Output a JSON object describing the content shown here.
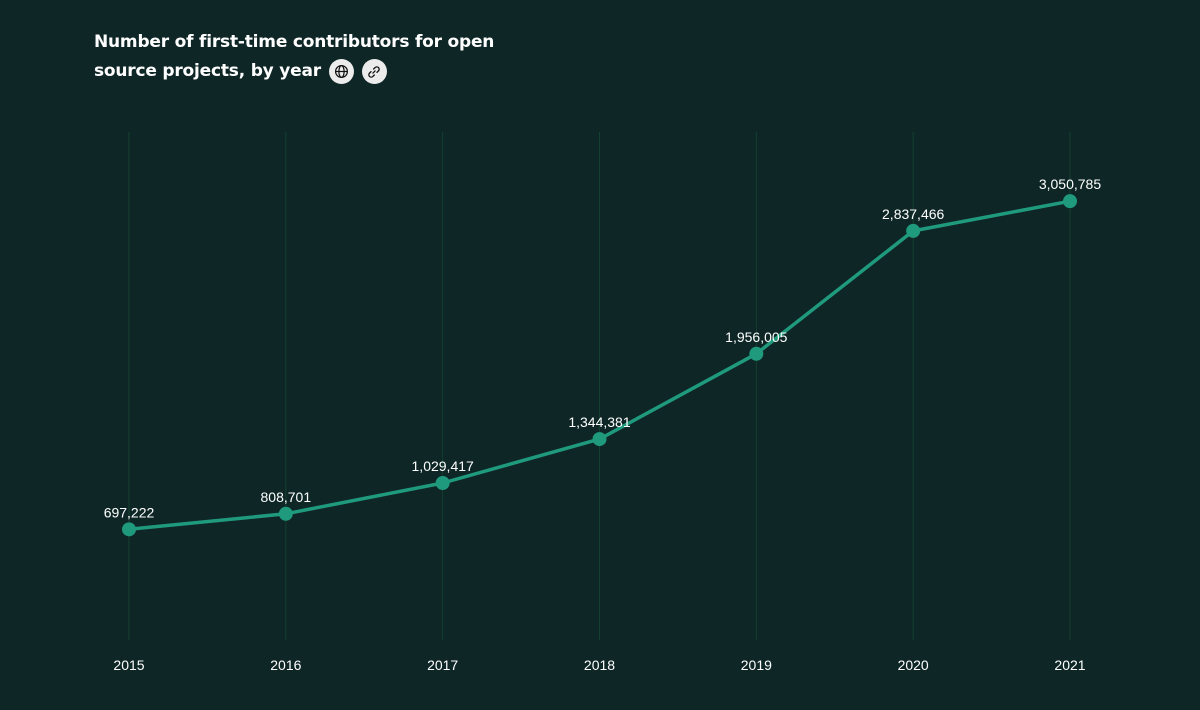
{
  "header": {
    "title_line1": "Number of first-time contributors for open",
    "title_line2": "source projects, by year",
    "icons": [
      "globe-icon",
      "link-icon"
    ]
  },
  "colors": {
    "background": "#0e2626",
    "line": "#1f9a7d",
    "gridline": "#14402f",
    "text": "#ffffff",
    "icon_button_bg": "#ececec"
  },
  "chart_data": {
    "type": "line",
    "title": "Number of first-time contributors for open source projects, by year",
    "categories": [
      "2015",
      "2016",
      "2017",
      "2018",
      "2019",
      "2020",
      "2021"
    ],
    "series": [
      {
        "values": [
          697222,
          808701,
          1029417,
          1344381,
          1956005,
          2837466,
          3050785
        ],
        "labels": [
          "697,222",
          "808,701",
          "1,029,417",
          "1,344,381",
          "1,956,005",
          "2,837,466",
          "3,050,785"
        ]
      }
    ],
    "xlabel": "",
    "ylabel": "",
    "ylim": [
      -96600,
      3546800
    ],
    "grid": "vertical",
    "legend": "none"
  }
}
